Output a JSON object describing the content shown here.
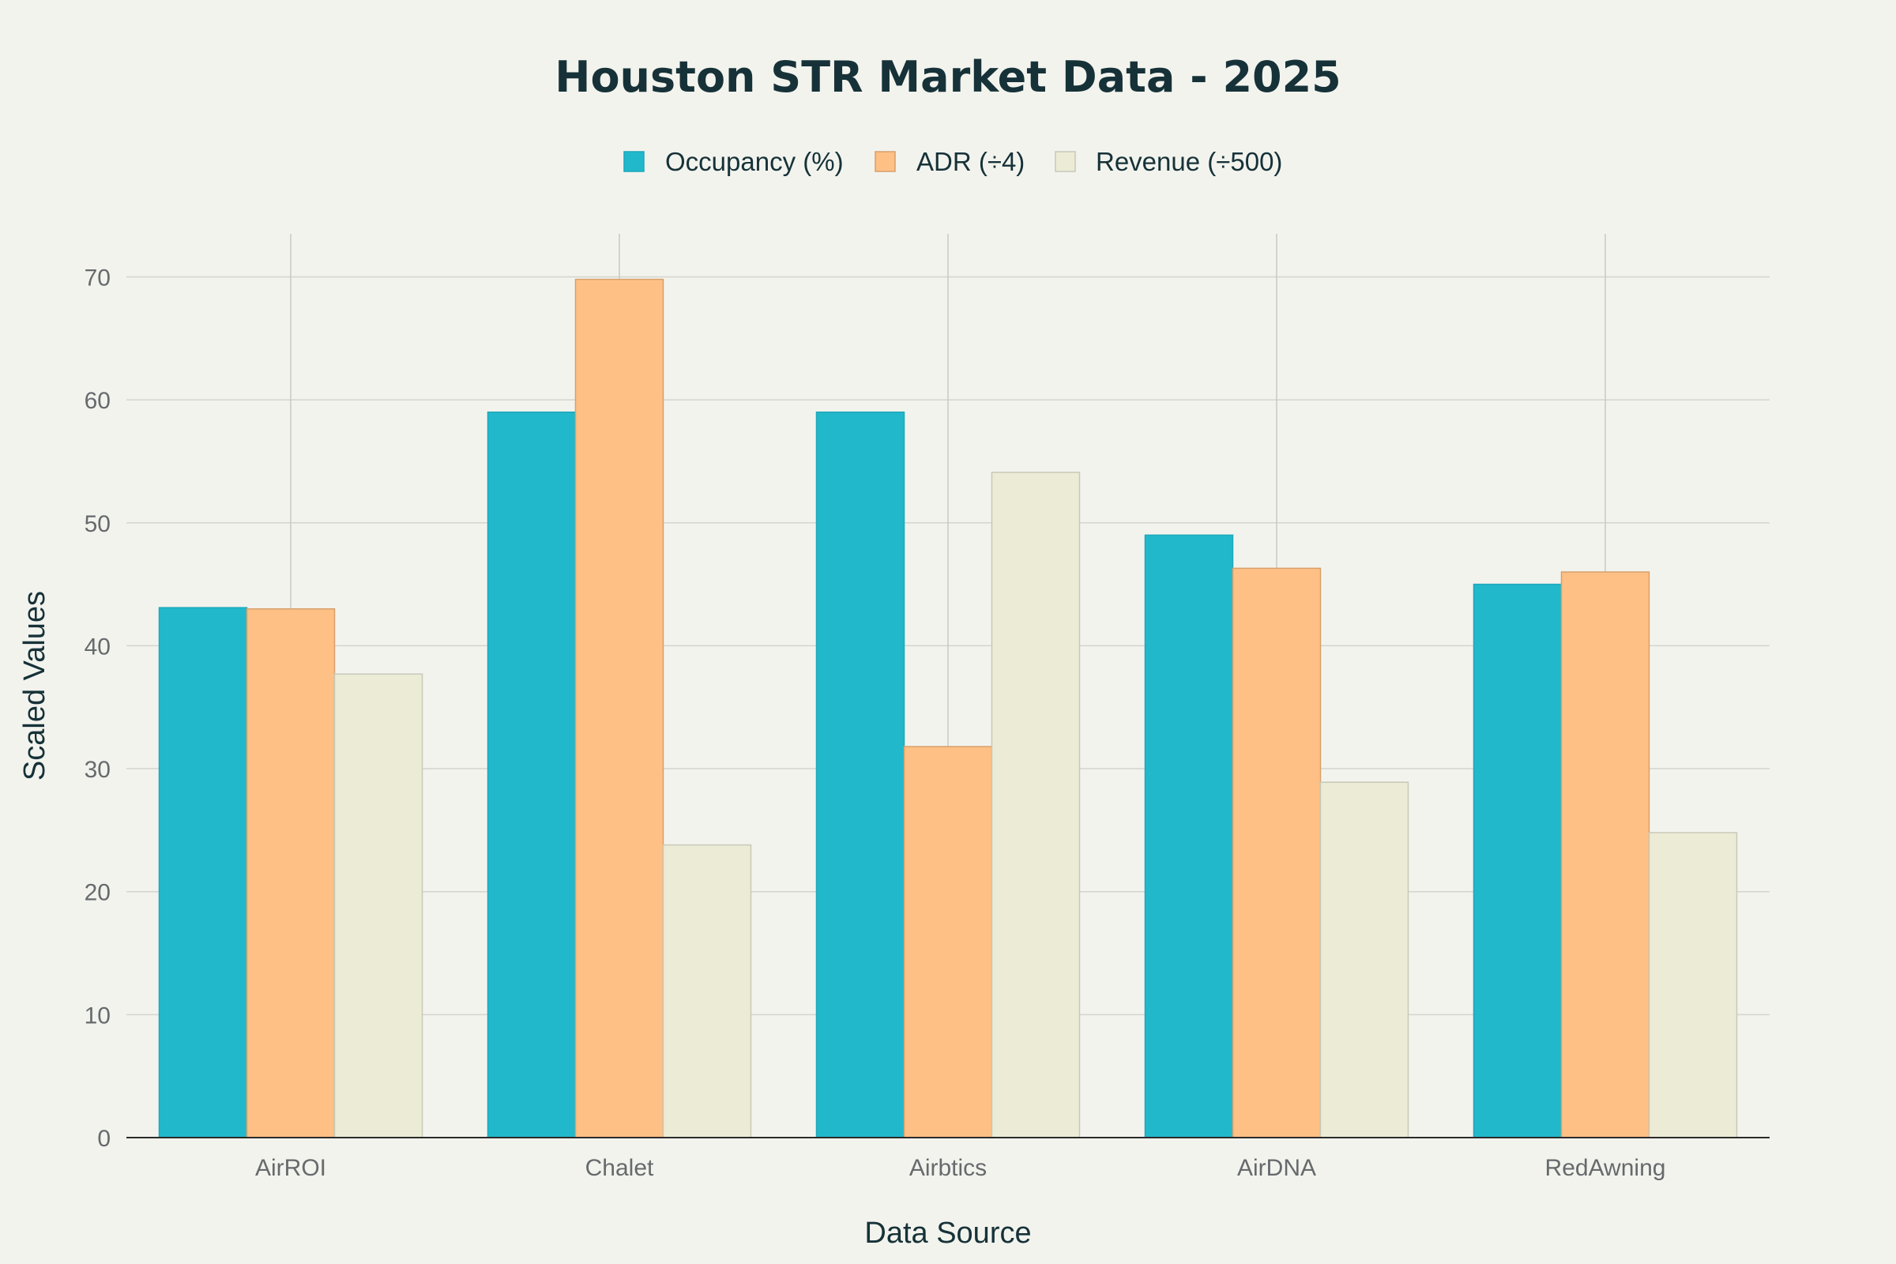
{
  "chart_data": {
    "type": "bar",
    "title": "Houston STR Market Data - 2025",
    "xlabel": "Data Source",
    "ylabel": "Scaled Values",
    "categories": [
      "AirROI",
      "Chalet",
      "Airbtics",
      "AirDNA",
      "RedAwning"
    ],
    "series": [
      {
        "name": "Occupancy (%)",
        "values": [
          43.1,
          59.0,
          59.0,
          49.0,
          45.0
        ],
        "color": "#21b8cc",
        "border": "#1ea8ba"
      },
      {
        "name": "ADR (÷4)",
        "values": [
          43.0,
          69.8,
          31.8,
          46.3,
          46.0
        ],
        "color": "#ffc085",
        "border": "#d6a06c"
      },
      {
        "name": "Revenue (÷500)",
        "values": [
          37.7,
          23.8,
          54.1,
          28.9,
          24.8
        ],
        "color": "#ececd6",
        "border": "#c8c8b8"
      }
    ],
    "ylim": [
      0,
      73.5
    ],
    "yticks": [
      0,
      10,
      20,
      30,
      40,
      50,
      60,
      70
    ],
    "grid": true,
    "legend_position": "top-center"
  }
}
